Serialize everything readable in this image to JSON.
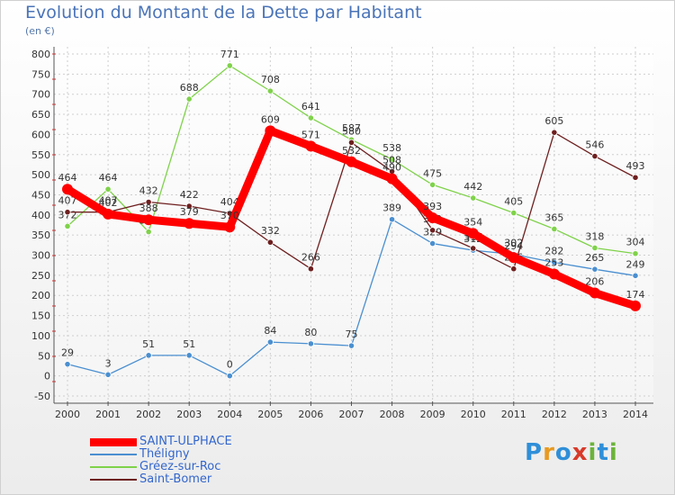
{
  "title": "Evolution du Montant de la Dette par Habitant",
  "subtitle": "(en €)",
  "brand": {
    "letters": [
      "P",
      "r",
      "o",
      "x",
      "i",
      "t",
      "i"
    ],
    "colors": [
      "#2f8fd8",
      "#e89a20",
      "#2f8fd8",
      "#d83a2a",
      "#6bb43a",
      "#2f8fd8",
      "#6bb43a"
    ]
  },
  "chart_data": {
    "type": "line",
    "title": "Evolution du Montant de la Dette par Habitant",
    "ylabel": "(en €)",
    "xlabel": "",
    "ylim": [
      -50,
      800
    ],
    "grid": true,
    "legend_position": "bottom-left",
    "x": [
      2000,
      2001,
      2002,
      2003,
      2004,
      2005,
      2006,
      2007,
      2008,
      2009,
      2010,
      2011,
      2012,
      2013,
      2014
    ],
    "y_ticks": [
      800,
      750,
      700,
      650,
      600,
      550,
      500,
      450,
      400,
      350,
      300,
      250,
      200,
      150,
      100,
      50,
      0,
      -50
    ],
    "series": [
      {
        "name": "SAINT-ULPHACE",
        "color": "#ff0000",
        "emphasis": true,
        "values": [
          464,
          402,
          388,
          379,
          370,
          609,
          571,
          532,
          490,
          393,
          354,
          294,
          253,
          206,
          174
        ]
      },
      {
        "name": "Théligny",
        "color": "#4a8fd0",
        "emphasis": false,
        "values": [
          29,
          3,
          51,
          51,
          0,
          84,
          80,
          75,
          389,
          329,
          312,
          302,
          282,
          265,
          249
        ]
      },
      {
        "name": "Gréez-sur-Roc",
        "color": "#7fd24a",
        "emphasis": false,
        "values": [
          372,
          464,
          358,
          688,
          771,
          708,
          641,
          587,
          538,
          475,
          442,
          405,
          365,
          318,
          304
        ]
      },
      {
        "name": "Saint-Bomer",
        "color": "#6e1f1f",
        "emphasis": false,
        "values": [
          407,
          407,
          432,
          422,
          404,
          332,
          266,
          580,
          508,
          362,
          317,
          266,
          605,
          546,
          493
        ]
      }
    ]
  }
}
